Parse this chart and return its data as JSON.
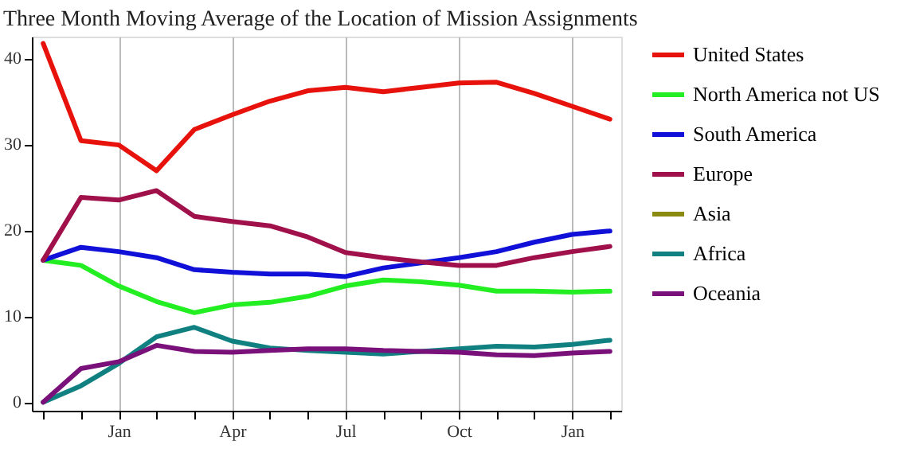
{
  "chart_data": {
    "type": "line",
    "title": "Three Month Moving Average of  the Location of Mission Assignments",
    "categories": [
      null,
      null,
      "Jan",
      null,
      null,
      "Apr",
      null,
      null,
      "Jul",
      null,
      null,
      "Oct",
      null,
      null,
      "Jan",
      null
    ],
    "ylim": [
      -1,
      42.5
    ],
    "yticks": [
      0,
      10,
      20,
      30,
      40
    ],
    "grid": "x",
    "legend": "right",
    "series": [
      {
        "name": "United States",
        "color": "#e8120c",
        "values": [
          41.7,
          30.4,
          29.9,
          26.9,
          31.7,
          33.4,
          35.0,
          36.2,
          36.6,
          36.1,
          36.6,
          37.1,
          37.2,
          35.9,
          34.4,
          32.9
        ]
      },
      {
        "name": "North America not US",
        "color": "#22ee22",
        "values": [
          16.5,
          15.9,
          13.5,
          11.7,
          10.4,
          11.3,
          11.6,
          12.3,
          13.5,
          14.2,
          14.0,
          13.6,
          12.9,
          12.9,
          12.8,
          12.9
        ]
      },
      {
        "name": "South America",
        "color": "#1010d8",
        "values": [
          16.5,
          18.0,
          17.5,
          16.8,
          15.4,
          15.1,
          14.9,
          14.9,
          14.6,
          15.6,
          16.2,
          16.8,
          17.5,
          18.6,
          19.5,
          19.9
        ]
      },
      {
        "name": "Europe",
        "color": "#a0104a",
        "values": [
          16.5,
          23.8,
          23.5,
          24.6,
          21.6,
          21.0,
          20.5,
          19.2,
          17.4,
          16.8,
          16.3,
          15.9,
          15.9,
          16.8,
          17.5,
          18.1
        ]
      },
      {
        "name": "Asia",
        "color": "#8a8a10",
        "values": [
          null,
          null,
          null,
          null,
          null,
          null,
          null,
          null,
          null,
          null,
          null,
          null,
          null,
          null,
          null,
          null
        ]
      },
      {
        "name": "Africa",
        "color": "#108080",
        "values": [
          0,
          1.9,
          4.5,
          7.6,
          8.7,
          7.1,
          6.3,
          6.0,
          5.8,
          5.6,
          5.9,
          6.2,
          6.5,
          6.4,
          6.7,
          7.2
        ]
      },
      {
        "name": "Oceania",
        "color": "#7a107a",
        "values": [
          0,
          3.9,
          4.7,
          6.6,
          5.9,
          5.8,
          6.0,
          6.2,
          6.2,
          6.0,
          5.9,
          5.8,
          5.5,
          5.4,
          5.7,
          5.9
        ]
      }
    ]
  }
}
